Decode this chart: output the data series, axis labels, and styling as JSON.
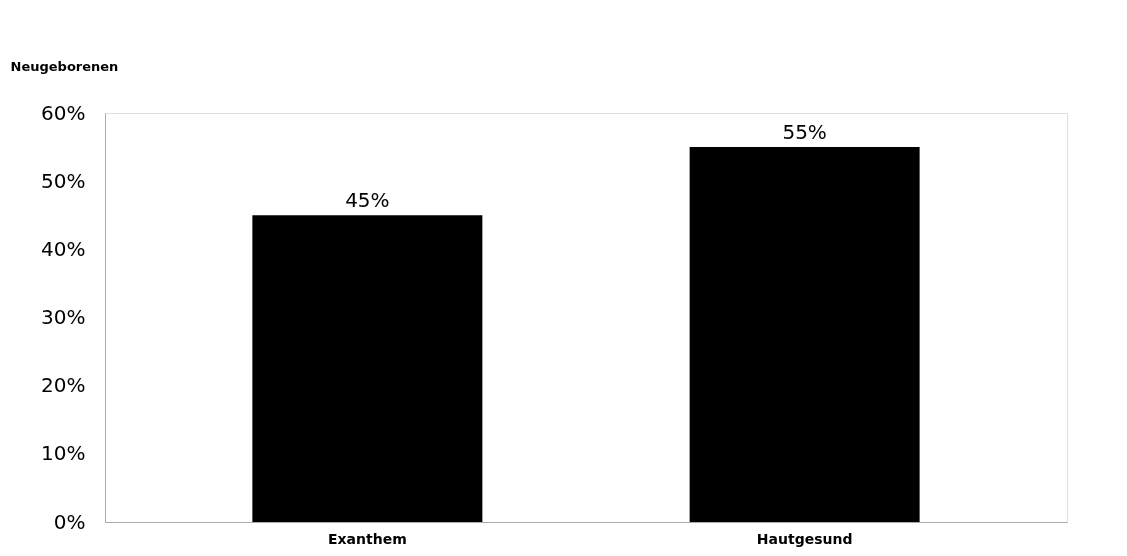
{
  "chart_data": {
    "type": "bar",
    "ylabel": "Neugeborenen",
    "categories": [
      "Exanthem",
      "Hautgesund"
    ],
    "values": [
      45,
      55
    ],
    "color": "#000000",
    "value_labels": [
      "45%",
      "55%"
    ],
    "ylim": [
      0,
      60
    ],
    "yticks": [
      {
        "value": 0,
        "label": "0%"
      },
      {
        "value": 10,
        "label": "10%"
      },
      {
        "value": 20,
        "label": "20%"
      },
      {
        "value": 30,
        "label": "30%"
      },
      {
        "value": 40,
        "label": "40%"
      },
      {
        "value": 50,
        "label": "50%"
      },
      {
        "value": 60,
        "label": "60%"
      }
    ],
    "grid": false
  }
}
